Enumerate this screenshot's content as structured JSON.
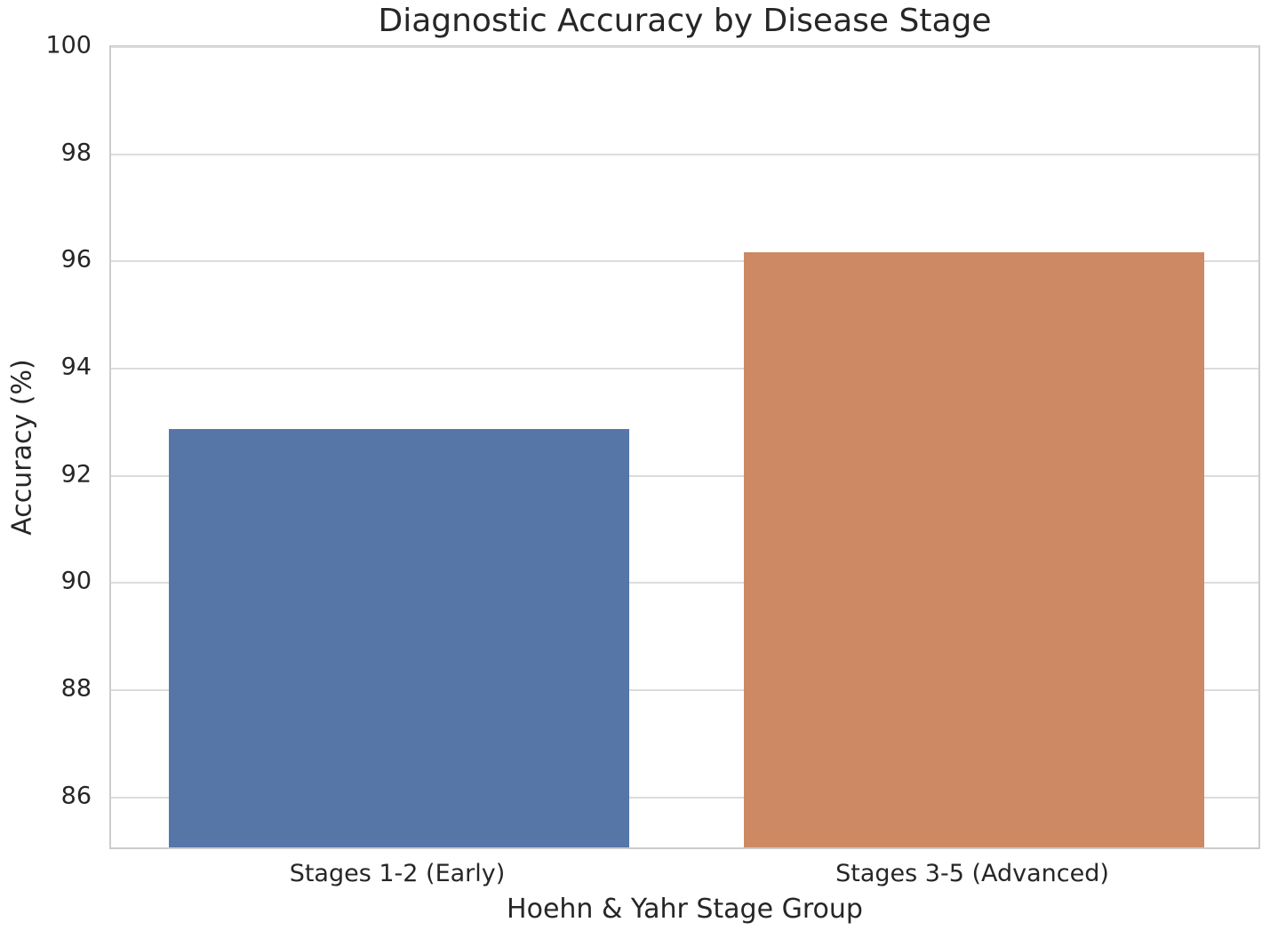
{
  "style": {
    "background": "#ffffff",
    "text_color": "#262626",
    "grid_color": "#dcdcdc",
    "spine_color": "#cccccc"
  },
  "chart_data": {
    "type": "bar",
    "title": "Diagnostic Accuracy by Disease Stage",
    "xlabel": "Hoehn & Yahr Stage Group",
    "ylabel": "Accuracy (%)",
    "categories": [
      "Stages 1-2 (Early)",
      "Stages 3-5 (Advanced)"
    ],
    "values": [
      92.8,
      96.1
    ],
    "bar_colors": [
      "#5776A8",
      "#CC8963"
    ],
    "ylim": [
      85,
      100
    ],
    "yticks": [
      86,
      88,
      90,
      92,
      94,
      96,
      98,
      100
    ],
    "grid": true,
    "legend": null,
    "bar_width_fraction": 0.8
  }
}
